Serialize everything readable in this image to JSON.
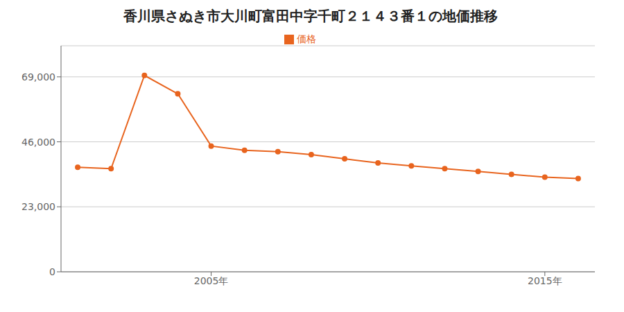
{
  "chart_data": {
    "type": "line",
    "title": "香川県さぬき市大川町富田中字千町２１４３番１の地価推移",
    "x": [
      2001,
      2002,
      2003,
      2004,
      2005,
      2006,
      2007,
      2008,
      2009,
      2010,
      2011,
      2012,
      2013,
      2014,
      2015,
      2016
    ],
    "series": [
      {
        "name": "価格",
        "color": "#e8641e",
        "marker": "circle",
        "values": [
          37000,
          36500,
          69500,
          63000,
          44500,
          43000,
          42500,
          41500,
          40000,
          38500,
          37500,
          36500,
          35500,
          34500,
          33500,
          33000
        ]
      }
    ],
    "xlim": [
      2000.5,
      2016.5
    ],
    "xticks": [
      {
        "value": 2005,
        "label": "2005年"
      },
      {
        "value": 2015,
        "label": "2015年"
      }
    ],
    "ylim": [
      0,
      80000
    ],
    "yticks": [
      0,
      {
        "value": 23000,
        "label": "23,000"
      },
      {
        "value": 46000,
        "label": "46,000"
      },
      {
        "value": 69000,
        "label": "69,000"
      }
    ],
    "grid": "y",
    "legend": "top"
  }
}
